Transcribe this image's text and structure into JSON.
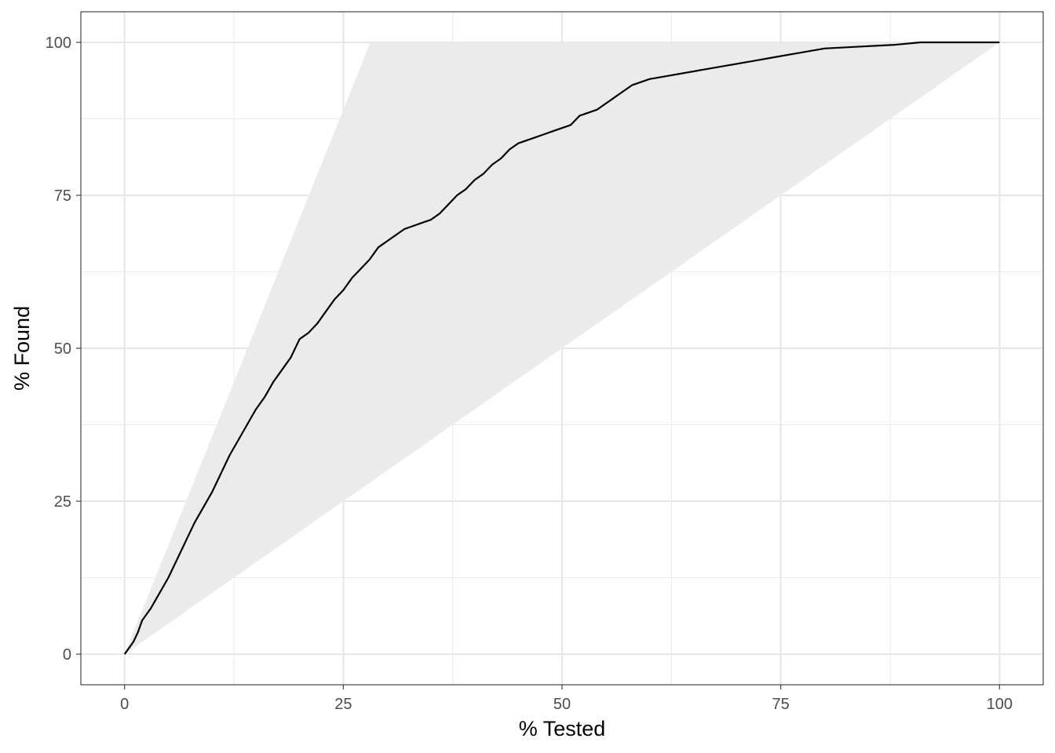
{
  "chart_data": {
    "type": "line",
    "title": "",
    "xlabel": "% Tested",
    "ylabel": "% Found",
    "xlim": [
      -5,
      105
    ],
    "ylim": [
      -5,
      105
    ],
    "x_ticks": [
      0,
      25,
      50,
      75,
      100
    ],
    "y_ticks": [
      0,
      25,
      50,
      75,
      100
    ],
    "grid": true,
    "legend": "none",
    "band": {
      "description_free": true,
      "upper": [
        [
          0,
          0
        ],
        [
          28.1,
          100
        ],
        [
          100,
          100
        ]
      ],
      "lower": [
        [
          0,
          0
        ],
        [
          100,
          100
        ]
      ],
      "color": "#ebebeb"
    },
    "series": [
      {
        "color": "#000000",
        "points": [
          [
            0,
            0
          ],
          [
            0.5,
            1
          ],
          [
            1,
            2
          ],
          [
            1.5,
            3.5
          ],
          [
            2,
            5.5
          ],
          [
            3,
            7.5
          ],
          [
            4,
            10
          ],
          [
            5,
            12.5
          ],
          [
            6,
            15.5
          ],
          [
            7,
            18.5
          ],
          [
            8,
            21.5
          ],
          [
            9,
            24
          ],
          [
            10,
            26.5
          ],
          [
            11,
            29.5
          ],
          [
            12,
            32.5
          ],
          [
            13,
            35
          ],
          [
            14,
            37.5
          ],
          [
            15,
            40
          ],
          [
            16,
            42
          ],
          [
            17,
            44.5
          ],
          [
            18,
            46.5
          ],
          [
            19,
            48.5
          ],
          [
            20,
            51.5
          ],
          [
            21,
            52.5
          ],
          [
            22,
            54
          ],
          [
            23,
            56
          ],
          [
            24,
            58
          ],
          [
            25,
            59.5
          ],
          [
            26,
            61.5
          ],
          [
            27,
            63
          ],
          [
            28,
            64.5
          ],
          [
            29,
            66.5
          ],
          [
            30,
            67.5
          ],
          [
            31,
            68.5
          ],
          [
            32,
            69.5
          ],
          [
            33,
            70
          ],
          [
            34,
            70.5
          ],
          [
            35,
            71
          ],
          [
            36,
            72
          ],
          [
            37,
            73.5
          ],
          [
            38,
            75
          ],
          [
            39,
            76
          ],
          [
            40,
            77.5
          ],
          [
            41,
            78.5
          ],
          [
            42,
            80
          ],
          [
            43,
            81
          ],
          [
            44,
            82.5
          ],
          [
            45,
            83.5
          ],
          [
            46,
            84
          ],
          [
            47,
            84.5
          ],
          [
            48,
            85
          ],
          [
            49,
            85.5
          ],
          [
            50,
            86
          ],
          [
            51,
            86.5
          ],
          [
            52,
            88
          ],
          [
            53,
            88.5
          ],
          [
            54,
            89
          ],
          [
            55,
            90
          ],
          [
            56,
            91
          ],
          [
            57,
            92
          ],
          [
            58,
            93
          ],
          [
            59,
            93.5
          ],
          [
            60,
            94
          ],
          [
            62,
            94.5
          ],
          [
            64,
            95
          ],
          [
            66,
            95.5
          ],
          [
            68,
            96
          ],
          [
            70,
            96.5
          ],
          [
            72,
            97
          ],
          [
            74,
            97.5
          ],
          [
            76,
            98
          ],
          [
            78,
            98.5
          ],
          [
            80,
            99
          ],
          [
            84,
            99.3
          ],
          [
            88,
            99.6
          ],
          [
            91,
            100
          ],
          [
            100,
            100
          ]
        ]
      }
    ]
  }
}
